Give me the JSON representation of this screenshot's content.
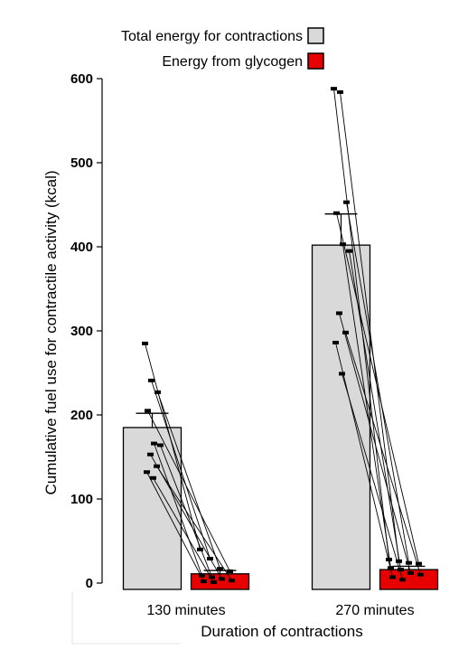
{
  "chart_data": {
    "type": "bar",
    "categories": [
      "130 minutes",
      "270 minutes"
    ],
    "xlabel": "Duration of contractions",
    "ylabel": "Cumulative fuel use for contractile activity (kcal)",
    "ylim": [
      0,
      600
    ],
    "yticks": [
      0,
      100,
      200,
      300,
      400,
      500,
      600
    ],
    "grid": false,
    "legend_position": "top-right",
    "series": [
      {
        "name": "Total energy for contractions",
        "color": "#d9d9d9",
        "values": [
          185,
          402
        ],
        "error": [
          17,
          37
        ],
        "points": [
          [
            285,
            241,
            227,
            205,
            166,
            164,
            153,
            139,
            132,
            125
          ],
          [
            588,
            584,
            453,
            440,
            403,
            395,
            321,
            298,
            286,
            249
          ]
        ]
      },
      {
        "name": "Energy from glycogen",
        "color": "#e80000",
        "values": [
          11,
          16
        ],
        "error": [
          4,
          4
        ],
        "points": [
          [
            40,
            29,
            17,
            14,
            9,
            7,
            5,
            3,
            2,
            1
          ],
          [
            28,
            26,
            24,
            23,
            18,
            16,
            12,
            10,
            7,
            4
          ]
        ]
      }
    ]
  }
}
